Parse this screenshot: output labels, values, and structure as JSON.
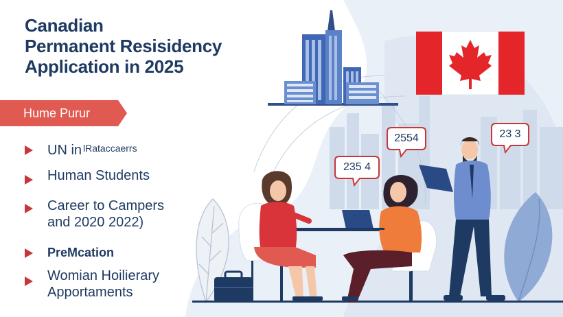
{
  "title": {
    "line1": "Canadian",
    "line2": "Permanent Resisidency",
    "line3": "Application in 2025"
  },
  "ribbon": {
    "label": "Hume Purur"
  },
  "bullets": [
    {
      "main": "UN in",
      "sub": "lRataccaerrs"
    },
    {
      "main": "Human Students"
    },
    {
      "main": "Career to Campers",
      "second": "and 2020 2022)"
    },
    {
      "main": "PreMcation"
    },
    {
      "main": "Womian Hoilierary",
      "second": "Apportaments"
    }
  ],
  "bubbles": {
    "left": "235 4",
    "middle": "2554",
    "right": "23 3"
  },
  "colors": {
    "title": "#1f3a62",
    "ribbon": "#e05a52",
    "bullet_marker": "#c9363a",
    "flag_red": "#e4262b",
    "building_blue": "#3f67b5",
    "background_shape": "#eaf0f7"
  },
  "icons": [
    "maple-leaf-flag",
    "office-building",
    "briefcase",
    "laptop",
    "clipboard",
    "leaf"
  ]
}
